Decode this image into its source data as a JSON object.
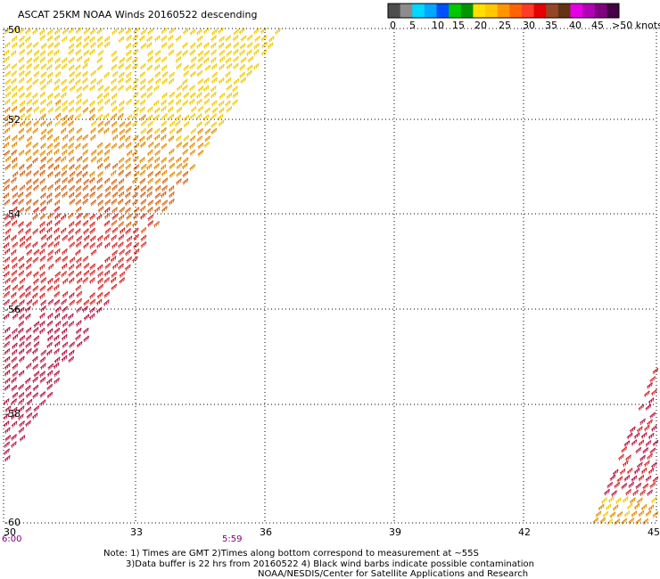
{
  "title": "ASCAT 25KM NOAA Winds 20160522 descending",
  "legend": {
    "unit": ">50 knots",
    "labels": [
      "0",
      "5",
      "10",
      "15",
      "20",
      "25",
      "30",
      "35",
      "40",
      "45"
    ],
    "colors": [
      "#4d4d4d",
      "#8c8c8c",
      "#00d8ff",
      "#00a8ff",
      "#0050ff",
      "#00c800",
      "#009600",
      "#ffe000",
      "#ffc800",
      "#ff9600",
      "#ff6400",
      "#ff3c28",
      "#e60000",
      "#964628",
      "#643214",
      "#e600e6",
      "#b400b4",
      "#800080",
      "#460046"
    ]
  },
  "lat_labels": [
    "-50",
    "-52",
    "-54",
    "-56",
    "-58",
    "-60"
  ],
  "lon_labels": [
    "30",
    "33",
    "36",
    "39",
    "42",
    "45"
  ],
  "times": [
    "6:00",
    "5:59"
  ],
  "notes": [
    "Note: 1) Times are GMT 2)Times along bottom correspond to measurement at ~55S",
    "3)Data buffer is 22 hrs from 20160522 4) Black wind barbs indicate possible contamination",
    "NOAA/NESDIS/Center for Satellite Applications and Research"
  ],
  "wind_colors": {
    "yellow": "#f0c800",
    "orange": "#e08a00",
    "dark_orange": "#d06010",
    "red": "#d02020",
    "crimson": "#b01040"
  }
}
